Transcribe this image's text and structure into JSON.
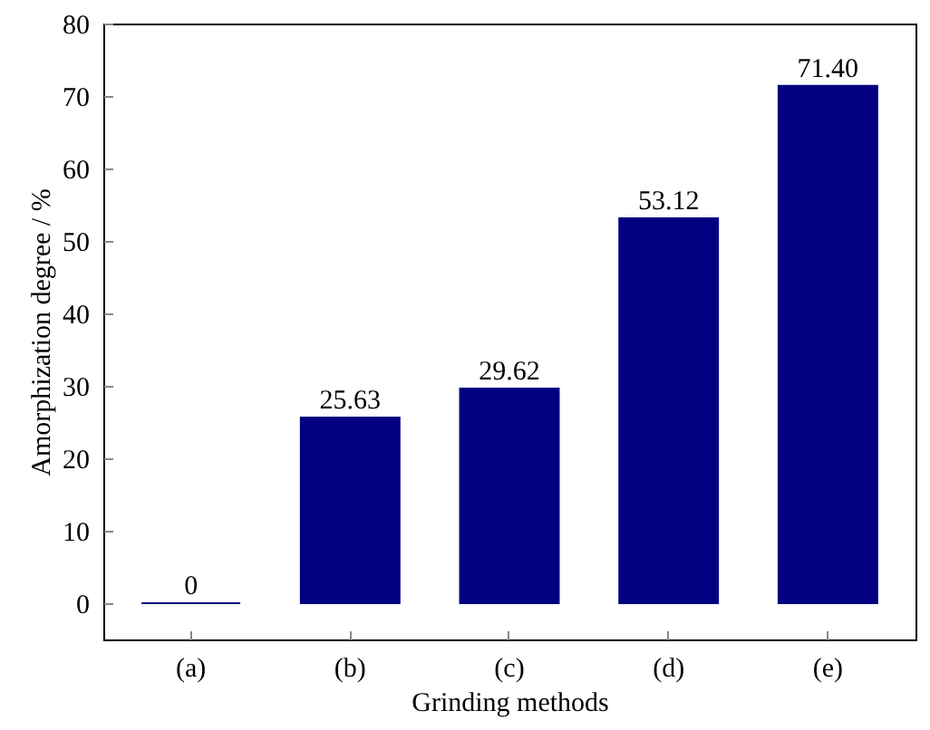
{
  "chart_data": {
    "type": "bar",
    "xlabel": "Grinding methods",
    "ylabel": "Amorphization degree / %",
    "categories": [
      "(a)",
      "(b)",
      "(c)",
      "(d)",
      "(e)"
    ],
    "values": [
      0,
      25.63,
      29.62,
      53.12,
      71.4
    ],
    "value_labels": [
      "0",
      "25.63",
      "29.62",
      "53.12",
      "71.40"
    ],
    "color": "#000080",
    "ylim": [
      -5,
      80
    ],
    "yticks": [
      0,
      10,
      20,
      30,
      40,
      50,
      60,
      70,
      80
    ],
    "grid": false
  }
}
